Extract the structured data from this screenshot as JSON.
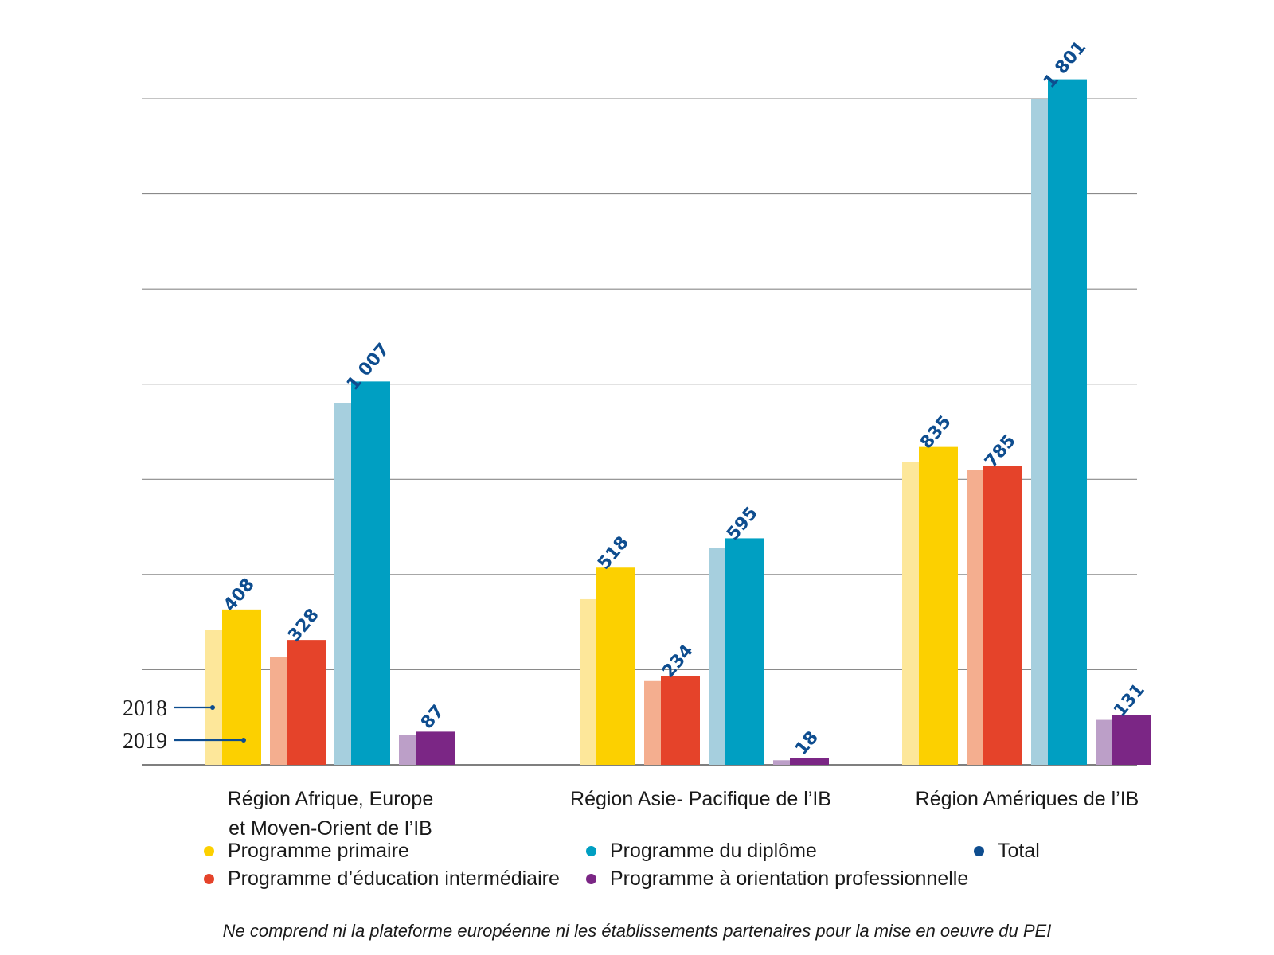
{
  "chart_data": {
    "type": "bar",
    "categories": [
      [
        "Région Afrique, Europe",
        "et Moyen-Orient de l’IB"
      ],
      [
        "Région Asie- Pacifique de l’IB"
      ],
      [
        "Région Amériques de l’IB"
      ]
    ],
    "series": [
      {
        "name": "Programme primaire",
        "color": "#fcd000",
        "color_2018": "#fde79a",
        "values_2018": [
          355,
          435,
          795
        ],
        "values_2019": [
          408,
          518,
          835
        ],
        "labels_2019": [
          "408",
          "518",
          "835"
        ]
      },
      {
        "name": "Programme d’éducation intermédiaire",
        "color": "#e5432a",
        "color_2018": "#f4ae8f",
        "values_2018": [
          283,
          220,
          775
        ],
        "values_2019": [
          328,
          234,
          785
        ],
        "labels_2019": [
          "328",
          "234",
          "785"
        ]
      },
      {
        "name": "Programme du diplôme",
        "color": "#009fc2",
        "color_2018": "#a6cfde",
        "values_2018": [
          950,
          570,
          1750
        ],
        "values_2019": [
          1007,
          595,
          1801
        ],
        "labels_2019": [
          "1 007",
          "595",
          "1 801"
        ]
      },
      {
        "name": "Programme à orientation professionnelle",
        "color": "#7b2685",
        "color_2018": "#bc9fc8",
        "values_2018": [
          78,
          12,
          118
        ],
        "values_2019": [
          87,
          18,
          131
        ],
        "labels_2019": [
          "87",
          "18",
          "131"
        ]
      }
    ],
    "years": [
      "2018",
      "2019"
    ],
    "ylim": [
      0,
      1750
    ],
    "gridlines": [
      0,
      250,
      500,
      750,
      1000,
      1250,
      1500,
      1750
    ],
    "label_color": "#0e4d8f"
  },
  "legend": [
    {
      "label": "Programme primaire",
      "color": "#fcd000"
    },
    {
      "label": "Programme du diplôme",
      "color": "#009fc2"
    },
    {
      "label": "Total",
      "color": "#0e4d8f"
    },
    {
      "label": "Programme d’éducation intermédiaire",
      "color": "#e5432a"
    },
    {
      "label": "Programme à orientation professionnelle",
      "color": "#7b2685"
    }
  ],
  "note": "Ne comprend ni la plateforme européenne ni les établissements partenaires pour la mise en oeuvre du PEI"
}
